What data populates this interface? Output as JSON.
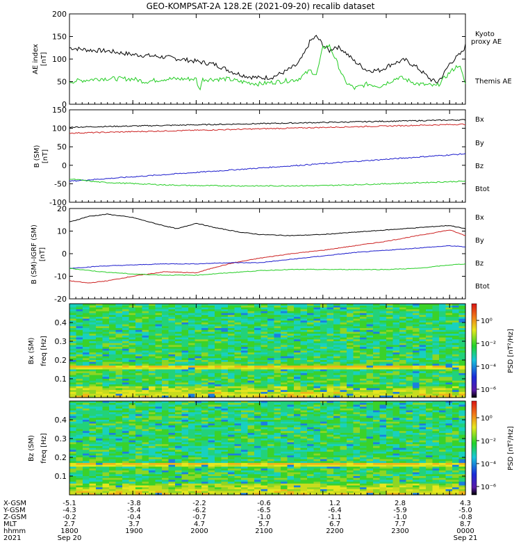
{
  "title": "GEO-KOMPSAT-2A 128.2E (2021-09-20) recalib dataset",
  "panels": {
    "ae": {
      "ylabel": "AE index",
      "yunit": "[nT]",
      "ylim": [
        0,
        200
      ],
      "yticks": [
        "200",
        "150",
        "100",
        "50",
        "0"
      ],
      "legend": [
        {
          "text": "Kyoto",
          "color": "#22cc22"
        },
        {
          "text": "proxy AE",
          "color": "#22cc22"
        },
        {
          "text": "Themis AE",
          "color": "#000000"
        }
      ]
    },
    "bsm": {
      "ylabel": "B (SM)",
      "yunit": "[nT]",
      "ylim": [
        -100,
        150
      ],
      "yticks": [
        "150",
        "100",
        "50",
        "0",
        "-50",
        "-100"
      ],
      "legend": [
        {
          "text": "Bx",
          "color": "#1a1acc"
        },
        {
          "text": "By",
          "color": "#22cc22"
        },
        {
          "text": "Bz",
          "color": "#cc2020"
        },
        {
          "text": "Btot",
          "color": "#000000"
        }
      ]
    },
    "dbsm": {
      "ylabel": "B (SM)-IGRF (SM)",
      "yunit": "[nT]",
      "ylim": [
        -20,
        20
      ],
      "yticks": [
        "20",
        "10",
        "0",
        "-10",
        "-20"
      ],
      "legend": [
        {
          "text": "Bx",
          "color": "#1a1acc"
        },
        {
          "text": "By",
          "color": "#22cc22"
        },
        {
          "text": "Bz",
          "color": "#cc2020"
        },
        {
          "text": "Btot",
          "color": "#000000"
        }
      ]
    },
    "bx_spec": {
      "ylabel": "Bx (SM)",
      "ylabel2": "freq [Hz]",
      "yticks": [
        "0.4",
        "0.3",
        "0.2",
        "0.1"
      ],
      "cbar_label": "PSD [nT²/Hz]",
      "cbar_ticks": [
        "10⁰",
        "10⁻²",
        "10⁻⁴",
        "10⁻⁶"
      ]
    },
    "bz_spec": {
      "ylabel": "Bz (SM)",
      "ylabel2": "freq [Hz]",
      "yticks": [
        "0.4",
        "0.3",
        "0.2",
        "0.1"
      ],
      "cbar_label": "PSD [nT²/Hz]",
      "cbar_ticks": [
        "10⁰",
        "10⁻²",
        "10⁻⁴",
        "10⁻⁶"
      ]
    }
  },
  "ephemeris": {
    "row_labels": [
      "X-GSM",
      "Y-GSM",
      "Z-GSM",
      "MLT",
      "hhmm",
      "2021"
    ],
    "columns": [
      {
        "x": "-5.1",
        "y": "-4.3",
        "z": "-0.2",
        "mlt": "2.7",
        "hhmm": "1800",
        "date": "Sep 20"
      },
      {
        "x": "-3.8",
        "y": "-5.4",
        "z": "-0.4",
        "mlt": "3.7",
        "hhmm": "1900",
        "date": ""
      },
      {
        "x": "-2.2",
        "y": "-6.2",
        "z": "-0.7",
        "mlt": "4.7",
        "hhmm": "2000",
        "date": ""
      },
      {
        "x": "-0.6",
        "y": "-6.5",
        "z": "-1.0",
        "mlt": "5.7",
        "hhmm": "2100",
        "date": ""
      },
      {
        "x": "1.2",
        "y": "-6.4",
        "z": "-1.1",
        "mlt": "6.7",
        "hhmm": "2200",
        "date": ""
      },
      {
        "x": "2.8",
        "y": "-5.9",
        "z": "-1.0",
        "mlt": "7.7",
        "hhmm": "2300",
        "date": ""
      },
      {
        "x": "4.3",
        "y": "-5.0",
        "z": "-0.8",
        "mlt": "8.7",
        "hhmm": "0000",
        "date": "Sep 21"
      }
    ]
  },
  "colors": {
    "black": "#000000",
    "green": "#22cc22",
    "red": "#cc2020",
    "blue": "#1a1acc"
  },
  "chart_data": [
    {
      "type": "line",
      "ylabel": "AE index [nT]",
      "ylim": [
        0,
        200
      ],
      "x": [
        "1800",
        "1900",
        "2000",
        "2100",
        "2200",
        "2300",
        "0000"
      ],
      "series": [
        {
          "name": "Themis AE",
          "color": "#000000",
          "points": [
            [
              18.0,
              125
            ],
            [
              18.3,
              120
            ],
            [
              18.6,
              118
            ],
            [
              18.9,
              112
            ],
            [
              19.0,
              110
            ],
            [
              19.3,
              107
            ],
            [
              19.6,
              103
            ],
            [
              19.9,
              97
            ],
            [
              20.0,
              95
            ],
            [
              20.3,
              88
            ],
            [
              20.6,
              70
            ],
            [
              20.8,
              62
            ],
            [
              21.0,
              58
            ],
            [
              21.2,
              60
            ],
            [
              21.4,
              72
            ],
            [
              21.6,
              88
            ],
            [
              21.7,
              110
            ],
            [
              21.8,
              140
            ],
            [
              21.9,
              150
            ],
            [
              22.0,
              132
            ],
            [
              22.1,
              118
            ],
            [
              22.2,
              128
            ],
            [
              22.3,
              122
            ],
            [
              22.5,
              95
            ],
            [
              22.7,
              75
            ],
            [
              22.9,
              75
            ],
            [
              23.1,
              90
            ],
            [
              23.3,
              98
            ],
            [
              23.5,
              80
            ],
            [
              23.7,
              55
            ],
            [
              23.8,
              48
            ],
            [
              23.9,
              65
            ],
            [
              24.0,
              90
            ],
            [
              24.2,
              115
            ],
            [
              24.25,
              130
            ]
          ]
        },
        {
          "name": "Kyoto proxy AE",
          "color": "#22cc22",
          "points": [
            [
              18.0,
              50
            ],
            [
              18.5,
              57
            ],
            [
              19.0,
              56
            ],
            [
              19.2,
              50
            ],
            [
              19.5,
              56
            ],
            [
              20.0,
              56
            ],
            [
              20.05,
              30
            ],
            [
              20.1,
              55
            ],
            [
              20.5,
              56
            ],
            [
              20.7,
              50
            ],
            [
              21.0,
              45
            ],
            [
              21.3,
              50
            ],
            [
              21.6,
              55
            ],
            [
              21.8,
              75
            ],
            [
              21.9,
              65
            ],
            [
              22.0,
              125
            ],
            [
              22.1,
              130
            ],
            [
              22.2,
              100
            ],
            [
              22.35,
              50
            ],
            [
              22.5,
              35
            ],
            [
              22.7,
              45
            ],
            [
              22.9,
              40
            ],
            [
              23.2,
              60
            ],
            [
              23.5,
              45
            ],
            [
              23.8,
              40
            ],
            [
              24.0,
              70
            ],
            [
              24.15,
              88
            ],
            [
              24.25,
              45
            ]
          ]
        }
      ]
    },
    {
      "type": "line",
      "ylabel": "B (SM) [nT]",
      "ylim": [
        -100,
        150
      ],
      "x": [
        "1800",
        "1900",
        "2000",
        "2100",
        "2200",
        "2300",
        "0000"
      ],
      "series": [
        {
          "name": "Btot",
          "color": "#000000",
          "points": [
            [
              18.0,
              103
            ],
            [
              24.25,
              123
            ]
          ]
        },
        {
          "name": "Bz",
          "color": "#cc2020",
          "points": [
            [
              18.0,
              87
            ],
            [
              24.25,
              111
            ]
          ]
        },
        {
          "name": "Bx",
          "color": "#1a1acc",
          "points": [
            [
              18.0,
              -43
            ],
            [
              24.25,
              31
            ]
          ]
        },
        {
          "name": "By",
          "color": "#22cc22",
          "points": [
            [
              18.0,
              -37
            ],
            [
              18.5,
              -46
            ],
            [
              19.5,
              -53
            ],
            [
              20.0,
              -55
            ],
            [
              21.0,
              -56
            ],
            [
              22.0,
              -55
            ],
            [
              23.0,
              -50
            ],
            [
              24.25,
              -43
            ]
          ]
        }
      ]
    },
    {
      "type": "line",
      "ylabel": "B (SM)-IGRF (SM) [nT]",
      "ylim": [
        -20,
        20
      ],
      "x": [
        "1800",
        "1900",
        "2000",
        "2100",
        "2200",
        "2300",
        "0000"
      ],
      "series": [
        {
          "name": "Btot",
          "color": "#000000",
          "points": [
            [
              18.0,
              14
            ],
            [
              18.3,
              16.5
            ],
            [
              18.6,
              17.5
            ],
            [
              19.0,
              16
            ],
            [
              19.4,
              13
            ],
            [
              19.7,
              11
            ],
            [
              20.0,
              13.5
            ],
            [
              20.3,
              11.5
            ],
            [
              20.7,
              9.5
            ],
            [
              21.0,
              8.5
            ],
            [
              21.5,
              8
            ],
            [
              22.0,
              8.5
            ],
            [
              22.5,
              9.5
            ],
            [
              23.0,
              10.5
            ],
            [
              23.5,
              11.5
            ],
            [
              24.0,
              12.5
            ],
            [
              24.25,
              11
            ]
          ]
        },
        {
          "name": "Bz",
          "color": "#cc2020",
          "points": [
            [
              18.0,
              -12
            ],
            [
              18.3,
              -13
            ],
            [
              18.6,
              -12
            ],
            [
              19.0,
              -10
            ],
            [
              19.5,
              -8
            ],
            [
              20.0,
              -8.5
            ],
            [
              20.3,
              -6
            ],
            [
              20.6,
              -4
            ],
            [
              21.0,
              -2
            ],
            [
              21.5,
              0
            ],
            [
              22.0,
              1.5
            ],
            [
              22.5,
              3.5
            ],
            [
              23.0,
              5.5
            ],
            [
              23.5,
              8
            ],
            [
              24.0,
              10.5
            ],
            [
              24.25,
              8
            ]
          ]
        },
        {
          "name": "Bx",
          "color": "#1a1acc",
          "points": [
            [
              18.0,
              -6.5
            ],
            [
              18.5,
              -5.5
            ],
            [
              19.0,
              -5
            ],
            [
              19.5,
              -4.5
            ],
            [
              20.0,
              -4.5
            ],
            [
              20.5,
              -4
            ],
            [
              21.0,
              -4
            ],
            [
              21.5,
              -2.5
            ],
            [
              22.0,
              -1
            ],
            [
              22.5,
              0.5
            ],
            [
              23.0,
              1.5
            ],
            [
              23.5,
              2.5
            ],
            [
              24.0,
              3.5
            ],
            [
              24.25,
              3
            ]
          ]
        },
        {
          "name": "By",
          "color": "#22cc22",
          "points": [
            [
              18.0,
              -6.5
            ],
            [
              18.5,
              -8
            ],
            [
              19.0,
              -9
            ],
            [
              19.5,
              -9.5
            ],
            [
              20.0,
              -9.5
            ],
            [
              20.5,
              -8.5
            ],
            [
              21.0,
              -7.5
            ],
            [
              21.5,
              -7
            ],
            [
              22.0,
              -7
            ],
            [
              22.5,
              -7
            ],
            [
              23.0,
              -7
            ],
            [
              23.5,
              -6.5
            ],
            [
              24.0,
              -5
            ],
            [
              24.25,
              -4.5
            ]
          ]
        }
      ]
    },
    {
      "type": "heatmap",
      "ylabel": "Bx (SM) freq [Hz]",
      "yticks": [
        0.1,
        0.2,
        0.3,
        0.4
      ],
      "colorbar": "PSD [nT²/Hz]"
    },
    {
      "type": "heatmap",
      "ylabel": "Bz (SM) freq [Hz]",
      "yticks": [
        0.1,
        0.2,
        0.3,
        0.4
      ],
      "colorbar": "PSD [nT²/Hz]"
    }
  ]
}
